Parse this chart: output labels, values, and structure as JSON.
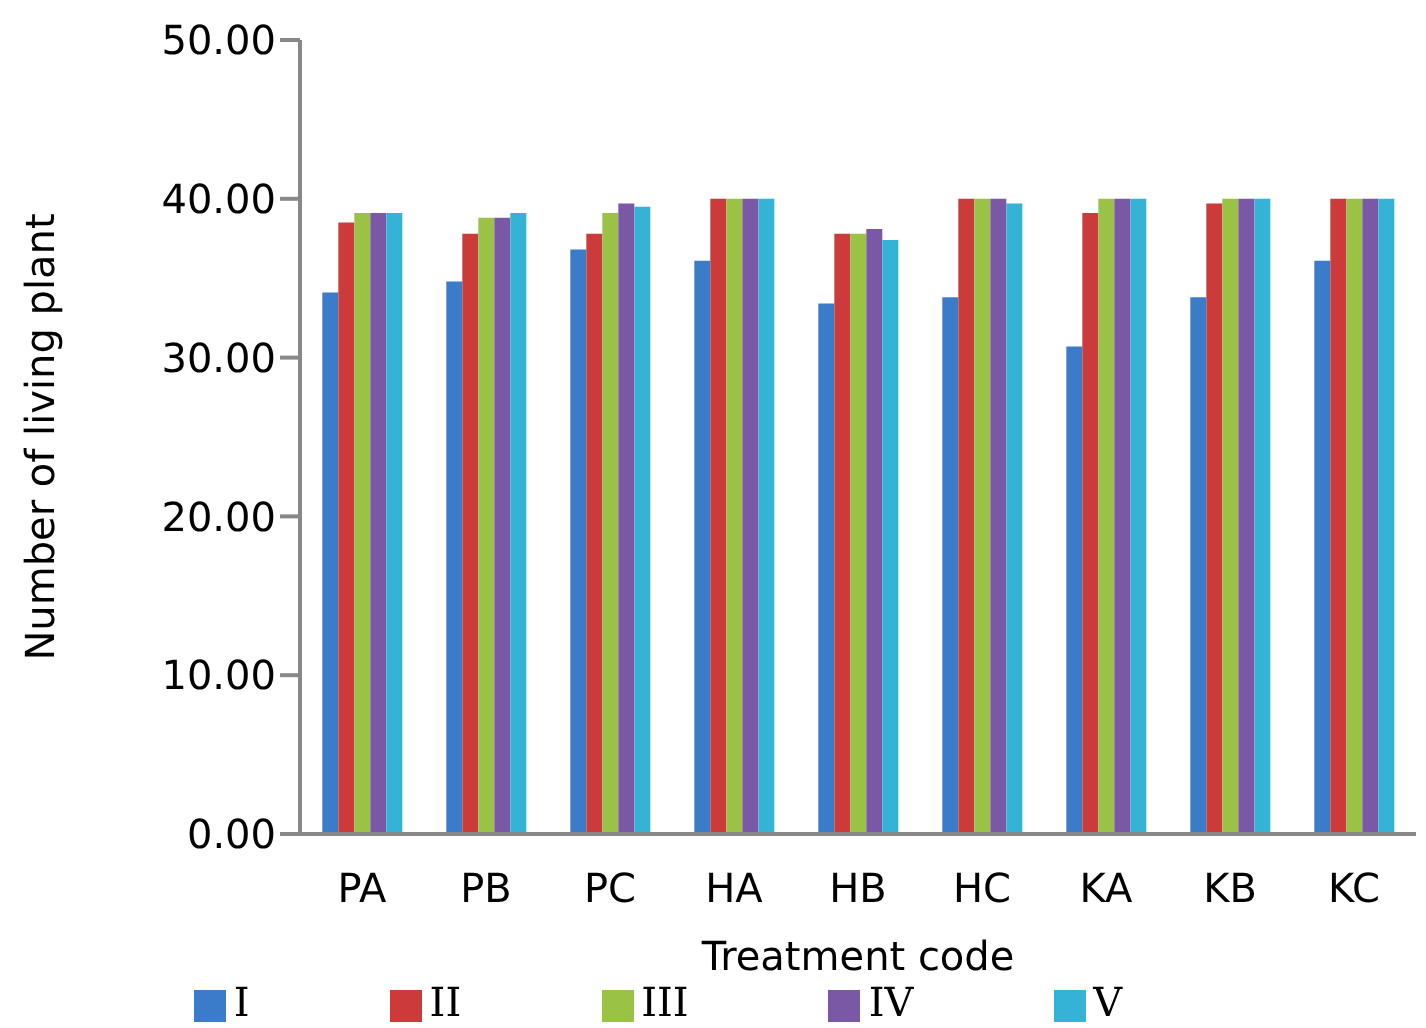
{
  "chart_data": {
    "type": "bar",
    "xlabel": "Treatment code",
    "ylabel": "Number of living plant",
    "categories": [
      "PA",
      "PB",
      "PC",
      "HA",
      "HB",
      "HC",
      "KA",
      "KB",
      "KC"
    ],
    "series": [
      {
        "name": "I",
        "color": "#3a7bca",
        "values": [
          34.1,
          34.8,
          36.8,
          36.1,
          33.4,
          33.8,
          30.7,
          33.8,
          36.1
        ]
      },
      {
        "name": "II",
        "color": "#cc3b3a",
        "values": [
          38.5,
          37.8,
          37.8,
          40,
          37.8,
          40,
          39.1,
          39.7,
          40
        ]
      },
      {
        "name": "III",
        "color": "#9ac346",
        "values": [
          39.1,
          38.8,
          39.1,
          40,
          37.8,
          40,
          40,
          40,
          40
        ]
      },
      {
        "name": "IV",
        "color": "#7b58a6",
        "values": [
          39.1,
          38.8,
          39.7,
          40,
          38.1,
          40,
          40,
          40,
          40
        ]
      },
      {
        "name": "V",
        "color": "#35b3d6",
        "values": [
          39.1,
          39.1,
          39.5,
          40,
          37.4,
          39.7,
          40,
          40,
          40
        ]
      }
    ],
    "ylim": [
      0,
      50
    ],
    "yticks": [
      {
        "value": 0,
        "label": "0.00"
      },
      {
        "value": 10,
        "label": "10.00"
      },
      {
        "value": 20,
        "label": "20.00"
      },
      {
        "value": 30,
        "label": "30.00"
      },
      {
        "value": 40,
        "label": "40.00"
      },
      {
        "value": 50,
        "label": "50.00"
      }
    ],
    "grid": false,
    "legend": "bottom"
  }
}
